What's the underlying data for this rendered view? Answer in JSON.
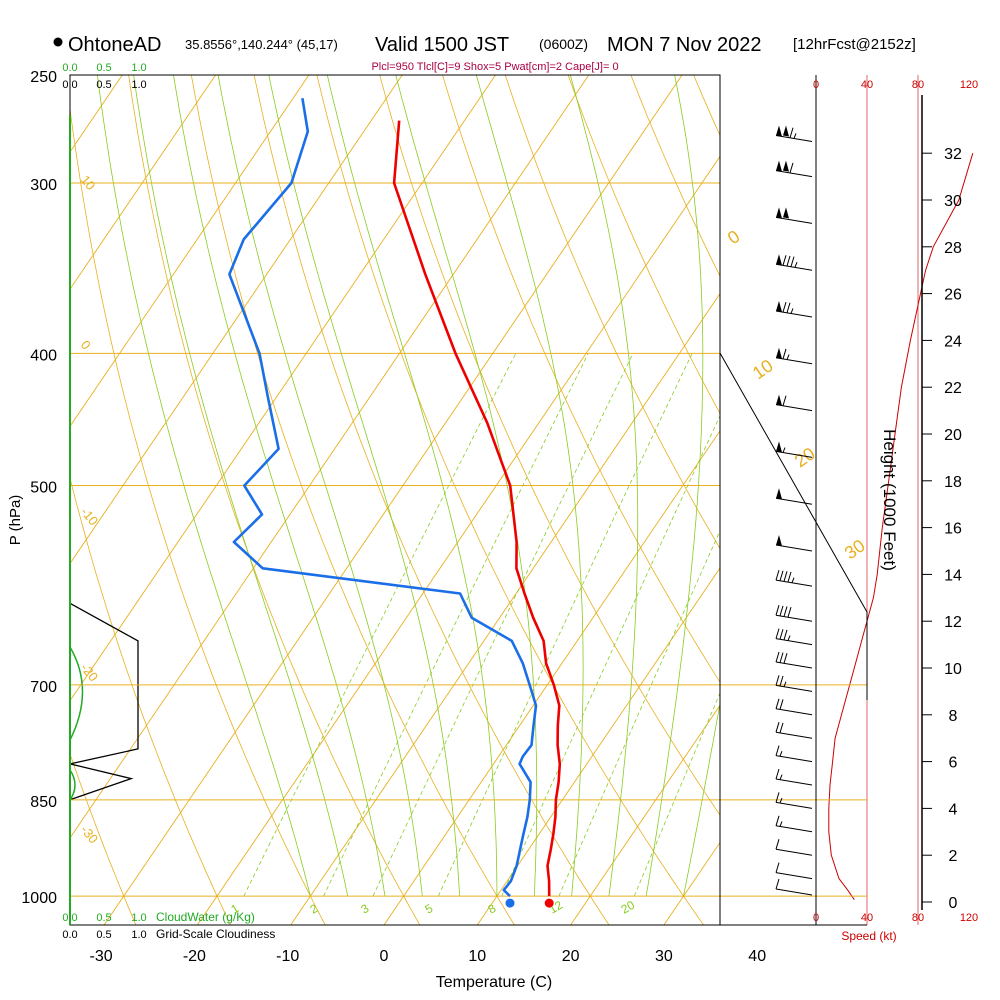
{
  "header": {
    "site": "OhtoneAD",
    "coords": "35.8556°,140.244° (45,17)",
    "valid": "Valid 1500 JST",
    "utc": "(0600Z)",
    "date": "MON 7 Nov 2022",
    "fcst": "[12hrFcst@2152z]",
    "indices": "Plcl=950 Tlcl[C]=9 Shox=5 Pwat[cm]=2 Cape[J]= 0"
  },
  "colors": {
    "temperature": "#ee0000",
    "dewpoint": "#1a6ee8",
    "isotherm": "#e8b020",
    "dry_adiabat": "#e8b020",
    "moist_adiabat": "#88cc22",
    "mixing_ratio": "#88cc22",
    "cloud_water": "#22aa22",
    "wind_speed": "#cc0000",
    "header_indices": "#aa0044"
  },
  "chart_data": {
    "type": "line",
    "title": "Skew-T log-P sounding",
    "xlabel": "Temperature (C)",
    "ylabel": "P (hPa)",
    "right_label": "Height (1000 Feet)",
    "x_ticks": [
      -30,
      -20,
      -10,
      0,
      10,
      20,
      30,
      40
    ],
    "y_ticks": [
      1000,
      850,
      700,
      500,
      400,
      300,
      250
    ],
    "height_ticks": [
      0,
      2,
      4,
      6,
      8,
      10,
      12,
      14,
      16,
      18,
      20,
      22,
      24,
      26,
      28,
      30,
      32
    ],
    "speed_ticks": [
      0,
      40,
      80,
      120
    ],
    "speed_label": "Speed (kt)",
    "cloud_scale": [
      "0.0",
      "0.5",
      "1.0"
    ],
    "cloud_water_label": "CloudWater (g/Kg)",
    "cloudiness_label": "Grid-Scale Cloudiness",
    "dry_adiabat_labels": [
      "10",
      "0",
      "-10",
      "-20",
      "-30"
    ],
    "moist_adiabat_labels": [
      "0",
      "10",
      "20",
      "30"
    ],
    "mixing_ratio_labels": [
      "1",
      "2",
      "3",
      "5",
      "8",
      "12",
      "20"
    ],
    "temperature": {
      "p": [
        1000,
        975,
        950,
        925,
        900,
        875,
        850,
        825,
        800,
        775,
        750,
        725,
        700,
        675,
        650,
        625,
        600,
        575,
        550,
        500,
        450,
        400,
        350,
        300,
        270
      ],
      "t": [
        15.6,
        14.5,
        13.2,
        12.4,
        11.5,
        10.5,
        9.3,
        8.3,
        7.1,
        5.5,
        4.1,
        2.8,
        0.7,
        -1.7,
        -3.6,
        -6.4,
        -9.1,
        -11.8,
        -13.7,
        -18.5,
        -25.5,
        -34.0,
        -43.0,
        -53.0,
        -57.0
      ]
    },
    "dewpoint": {
      "p": [
        1000,
        990,
        975,
        950,
        925,
        900,
        875,
        850,
        825,
        800,
        790,
        775,
        750,
        725,
        700,
        675,
        650,
        625,
        600,
        575,
        550,
        525,
        500,
        470,
        430,
        400,
        350,
        330,
        300,
        275,
        260
      ],
      "td": [
        11.4,
        10.3,
        10.4,
        9.9,
        9.1,
        8.3,
        7.5,
        6.5,
        5.3,
        2.8,
        2.6,
        2.7,
        1.5,
        0.3,
        -1.9,
        -4.2,
        -7.0,
        -13.0,
        -16.0,
        -39.0,
        -44.0,
        -43.0,
        -47.0,
        -46.0,
        -51.0,
        -55.0,
        -64.0,
        -65.0,
        -64.0,
        -66.0,
        -69.0
      ]
    },
    "wind_speed": {
      "h": [
        0.1,
        0.5,
        1.0,
        2.0,
        3.0,
        4.0,
        5.0,
        6.0,
        7.0,
        8.0,
        9.0,
        10.0,
        11.0,
        12.0,
        13.0,
        14.0,
        16.0,
        18.0,
        20.0,
        22.0,
        24.0,
        26.0,
        27.0,
        28.0,
        30.0,
        32.0
      ],
      "kt": [
        30,
        25,
        18,
        12,
        10,
        10,
        11,
        13,
        15,
        20,
        25,
        30,
        35,
        40,
        45,
        48,
        52,
        57,
        62,
        67,
        74,
        82,
        86,
        92,
        112,
        123
      ]
    },
    "wind_barbs": [
      {
        "h": 0.3,
        "kt": 10
      },
      {
        "h": 1.0,
        "kt": 10
      },
      {
        "h": 2.0,
        "kt": 10
      },
      {
        "h": 3.0,
        "kt": 15
      },
      {
        "h": 4.0,
        "kt": 15
      },
      {
        "h": 5.0,
        "kt": 15
      },
      {
        "h": 6.0,
        "kt": 15
      },
      {
        "h": 7.0,
        "kt": 20
      },
      {
        "h": 8.0,
        "kt": 20
      },
      {
        "h": 9.0,
        "kt": 25
      },
      {
        "h": 10.0,
        "kt": 30
      },
      {
        "h": 11.0,
        "kt": 35
      },
      {
        "h": 12.0,
        "kt": 40
      },
      {
        "h": 13.5,
        "kt": 45
      },
      {
        "h": 15.0,
        "kt": 50
      },
      {
        "h": 17.0,
        "kt": 50
      },
      {
        "h": 19.0,
        "kt": 55
      },
      {
        "h": 21.0,
        "kt": 60
      },
      {
        "h": 23.0,
        "kt": 65
      },
      {
        "h": 25.0,
        "kt": 75
      },
      {
        "h": 27.0,
        "kt": 85
      },
      {
        "h": 29.0,
        "kt": 100
      },
      {
        "h": 31.0,
        "kt": 110
      },
      {
        "h": 32.5,
        "kt": 115
      }
    ],
    "cloudiness": {
      "p": [
        610,
        650,
        665,
        780,
        800,
        820,
        850
      ],
      "frac": [
        0.0,
        1.0,
        1.0,
        1.0,
        0.0,
        0.9,
        0.0
      ]
    }
  }
}
